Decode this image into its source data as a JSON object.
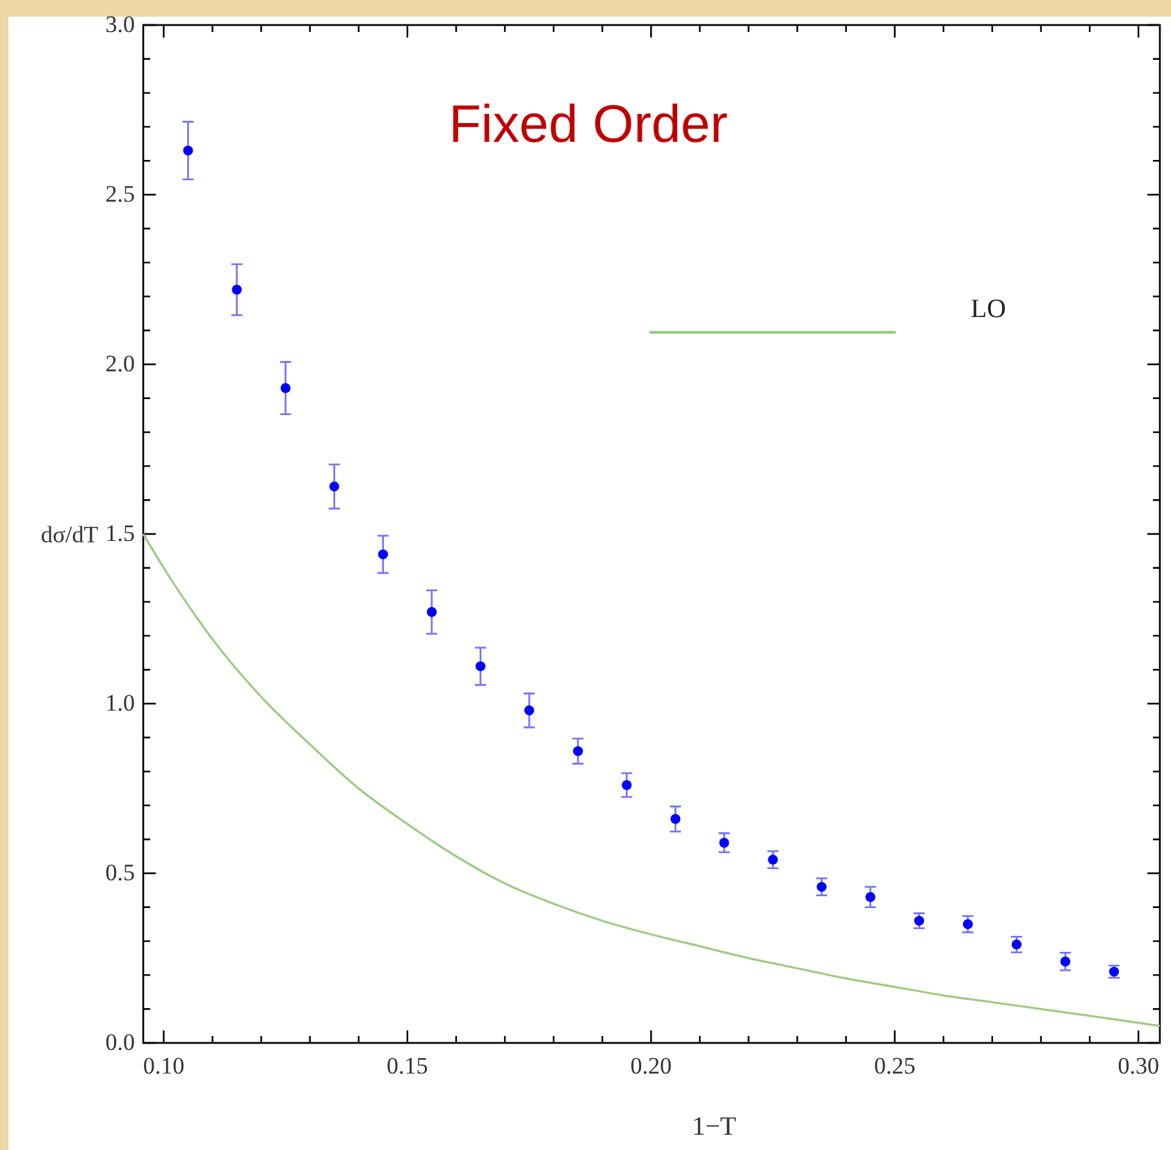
{
  "chart_data": {
    "type": "scatter",
    "title": "Fixed Order",
    "xlabel": "1−T",
    "ylabel": "dσ/dT",
    "xlim": [
      0.0958,
      0.3044
    ],
    "ylim": [
      0,
      3
    ],
    "xticks": [
      {
        "value": 0.1,
        "label": "0.10"
      },
      {
        "value": 0.11,
        "label": null
      },
      {
        "value": 0.12,
        "label": null
      },
      {
        "value": 0.13,
        "label": null
      },
      {
        "value": 0.14,
        "label": null
      },
      {
        "value": 0.15,
        "label": "0.15"
      },
      {
        "value": 0.16,
        "label": null
      },
      {
        "value": 0.17,
        "label": null
      },
      {
        "value": 0.18,
        "label": null
      },
      {
        "value": 0.19,
        "label": null
      },
      {
        "value": 0.2,
        "label": "0.20"
      },
      {
        "value": 0.21,
        "label": null
      },
      {
        "value": 0.22,
        "label": null
      },
      {
        "value": 0.23,
        "label": null
      },
      {
        "value": 0.24,
        "label": null
      },
      {
        "value": 0.25,
        "label": "0.25"
      },
      {
        "value": 0.26,
        "label": null
      },
      {
        "value": 0.27,
        "label": null
      },
      {
        "value": 0.28,
        "label": null
      },
      {
        "value": 0.29,
        "label": null
      },
      {
        "value": 0.3,
        "label": "0.30"
      }
    ],
    "yticks": [
      {
        "value": 0,
        "label": "0.0"
      },
      {
        "value": 0.1,
        "label": null
      },
      {
        "value": 0.2,
        "label": null
      },
      {
        "value": 0.3,
        "label": null
      },
      {
        "value": 0.4,
        "label": null
      },
      {
        "value": 0.5,
        "label": "0.5"
      },
      {
        "value": 0.6,
        "label": null
      },
      {
        "value": 0.7,
        "label": null
      },
      {
        "value": 0.8,
        "label": null
      },
      {
        "value": 0.9,
        "label": null
      },
      {
        "value": 1,
        "label": "1.0"
      },
      {
        "value": 1.1,
        "label": null
      },
      {
        "value": 1.2,
        "label": null
      },
      {
        "value": 1.3,
        "label": null
      },
      {
        "value": 1.4,
        "label": null
      },
      {
        "value": 1.5,
        "label": "1.5"
      },
      {
        "value": 1.6,
        "label": null
      },
      {
        "value": 1.7,
        "label": null
      },
      {
        "value": 1.8,
        "label": null
      },
      {
        "value": 1.9,
        "label": null
      },
      {
        "value": 2,
        "label": "2.0"
      },
      {
        "value": 2.1,
        "label": null
      },
      {
        "value": 2.2,
        "label": null
      },
      {
        "value": 2.3,
        "label": null
      },
      {
        "value": 2.4,
        "label": null
      },
      {
        "value": 2.5,
        "label": "2.5"
      },
      {
        "value": 2.6,
        "label": null
      },
      {
        "value": 2.7,
        "label": null
      },
      {
        "value": 2.8,
        "label": null
      },
      {
        "value": 2.9,
        "label": null
      },
      {
        "value": 3,
        "label": "3.0"
      }
    ],
    "grid": false,
    "legend": "top right",
    "series": [
      {
        "color": "#0000ff",
        "marker": "circle",
        "x": [
          0.105,
          0.115,
          0.125,
          0.135,
          0.145,
          0.155,
          0.165,
          0.175,
          0.185,
          0.195,
          0.205,
          0.215,
          0.225,
          0.235,
          0.245,
          0.255,
          0.265,
          0.275,
          0.285,
          0.295
        ],
        "values": [
          2.63,
          2.22,
          1.93,
          1.64,
          1.44,
          1.27,
          1.11,
          0.98,
          0.86,
          0.76,
          0.66,
          0.59,
          0.54,
          0.46,
          0.43,
          0.36,
          0.35,
          0.29,
          0.24,
          0.21
        ],
        "errors": [
          0.085,
          0.075,
          0.077,
          0.065,
          0.055,
          0.064,
          0.055,
          0.05,
          0.037,
          0.035,
          0.037,
          0.028,
          0.025,
          0.025,
          0.03,
          0.022,
          0.024,
          0.023,
          0.026,
          0.018
        ]
      },
      {
        "type": "line",
        "name": "LO",
        "color": "#99cc80",
        "marker": "none",
        "line_style": "solid",
        "x": [
          0.0958,
          0.1,
          0.11,
          0.12,
          0.13,
          0.14,
          0.15,
          0.16,
          0.17,
          0.18,
          0.19,
          0.2,
          0.21,
          0.22,
          0.23,
          0.24,
          0.25,
          0.26,
          0.27,
          0.28,
          0.29,
          0.3044
        ],
        "values": [
          1.5,
          1.4,
          1.19,
          1.02,
          0.88,
          0.75,
          0.645,
          0.55,
          0.47,
          0.41,
          0.36,
          0.32,
          0.285,
          0.25,
          0.22,
          0.19,
          0.165,
          0.14,
          0.12,
          0.1,
          0.08,
          0.05
        ]
      }
    ]
  }
}
